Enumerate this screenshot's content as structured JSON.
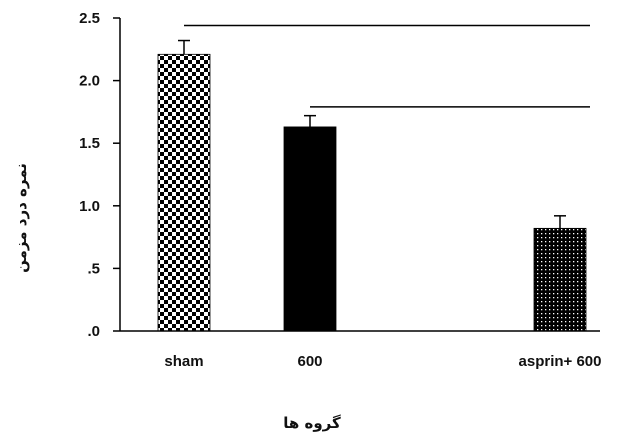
{
  "chart_data": {
    "type": "bar",
    "categories": [
      "sham",
      "600",
      "asprin+ 600"
    ],
    "values": [
      2.21,
      1.63,
      0.82
    ],
    "errors": [
      0.11,
      0.09,
      0.1
    ],
    "patterns": [
      "checkerboard",
      "solid",
      "dotted"
    ],
    "ylim": [
      0,
      2.5
    ],
    "yticks": [
      ".0",
      ".5",
      "1.0",
      "1.5",
      "2.0",
      "2.5"
    ],
    "xlabel": "گروه ها",
    "ylabel": "نمره درد مزمن",
    "grid": false,
    "comparison_lines": [
      {
        "from": "sham",
        "to": "asprin+ 600",
        "y": 2.44
      },
      {
        "from": "600",
        "to": "asprin+ 600",
        "y": 1.79
      }
    ]
  }
}
